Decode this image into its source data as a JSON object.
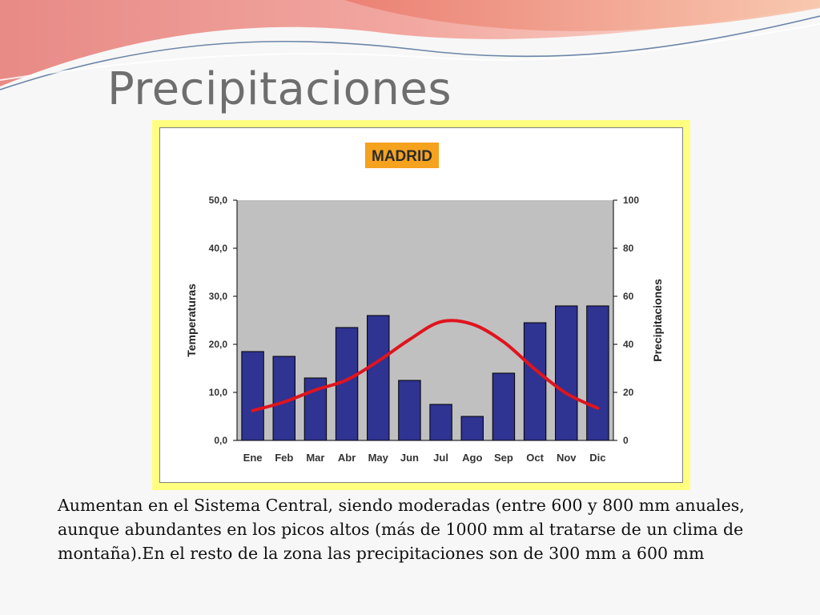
{
  "slide": {
    "title": "Precipitaciones",
    "body": "Aumentan en el Sistema Central, siendo moderadas (entre 600 y 800 mm anuales, aunque abundantes en los picos altos (más de 1000 mm al tratarse de un clima de montaña).En el resto de la zona las precipitaciones son de 300 mm a 600 mm"
  },
  "colors": {
    "bars": "#2f3391",
    "line": "#e0141e",
    "plot_bg": "#c0c0c0",
    "badge": "#f5a21e",
    "frame": "#ffff80"
  },
  "chart_data": {
    "type": "bar",
    "title": "MADRID",
    "categories": [
      "Ene",
      "Feb",
      "Mar",
      "Abr",
      "May",
      "Jun",
      "Jul",
      "Ago",
      "Sep",
      "Oct",
      "Nov",
      "Dic"
    ],
    "series": [
      {
        "type": "bar",
        "axis": "right",
        "values": [
          37,
          35,
          26,
          47,
          52,
          25,
          15,
          10,
          28,
          49,
          56,
          56
        ]
      },
      {
        "type": "line",
        "axis": "left",
        "values": [
          6.2,
          8.0,
          10.5,
          12.6,
          16.5,
          21.0,
          24.7,
          24.2,
          20.5,
          14.8,
          9.8,
          6.7
        ]
      }
    ],
    "ylabel": "Temperaturas",
    "y2label": "Precipitaciones",
    "ylim": [
      0,
      50
    ],
    "y2lim": [
      0,
      100
    ],
    "yticks": [
      "0,0",
      "10,0",
      "20,0",
      "30,0",
      "40,0",
      "50,0"
    ],
    "y2ticks": [
      "0",
      "20",
      "40",
      "60",
      "80",
      "100"
    ],
    "grid": false,
    "legend": "none"
  }
}
